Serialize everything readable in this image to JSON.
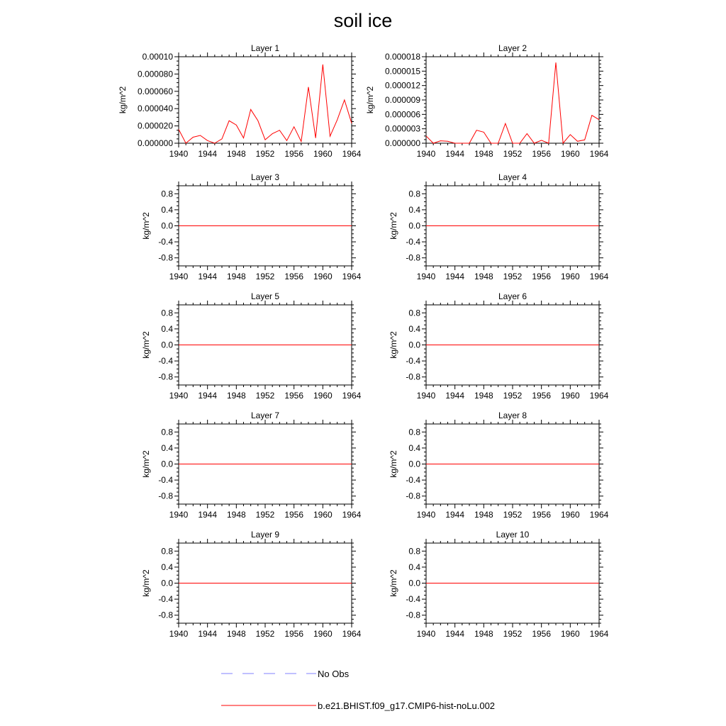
{
  "title": "soil ice",
  "colors": {
    "model": "#ff0000",
    "obs": "#8080ff",
    "axis": "#000000"
  },
  "legend": {
    "obs_label": "No Obs",
    "model_label": "b.e21.BHIST.f09_g17.CMIP6-hist-noLu.002"
  },
  "chart_data": [
    {
      "type": "line",
      "title": "Layer 1",
      "ylabel": "kg/m^2",
      "xlim": [
        1940,
        1964
      ],
      "ylim": [
        0,
        0.0001
      ],
      "xticks": [
        "1940",
        "1944",
        "1948",
        "1952",
        "1956",
        "1960",
        "1964"
      ],
      "yticks": [
        "0.000000",
        "0.000020",
        "0.000040",
        "0.000060",
        "0.000080",
        "0.00010"
      ],
      "x": [
        1940,
        1941,
        1942,
        1943,
        1944,
        1945,
        1946,
        1947,
        1948,
        1949,
        1950,
        1951,
        1952,
        1953,
        1954,
        1955,
        1956,
        1957,
        1958,
        1959,
        1960,
        1961,
        1962,
        1963,
        1964
      ],
      "series": [
        {
          "values": [
            1.6e-05,
            0.0,
            7e-06,
            9e-06,
            3e-06,
            0.0,
            5e-06,
            2.6e-05,
            2.1e-05,
            6e-06,
            3.9e-05,
            2.6e-05,
            4e-06,
            1.1e-05,
            1.5e-05,
            3e-06,
            1.9e-05,
            2e-06,
            6.5e-05,
            6e-06,
            9.1e-05,
            8e-06,
            2.7e-05,
            5e-05,
            2.3e-05
          ]
        }
      ]
    },
    {
      "type": "line",
      "title": "Layer 2",
      "ylabel": "kg/m^2",
      "xlim": [
        1940,
        1964
      ],
      "ylim": [
        0,
        1.8e-05
      ],
      "xticks": [
        "1940",
        "1944",
        "1948",
        "1952",
        "1956",
        "1960",
        "1964"
      ],
      "yticks": [
        "0.000000",
        "0.000003",
        "0.000006",
        "0.000009",
        "0.000012",
        "0.000015",
        "0.000018"
      ],
      "x": [
        1940,
        1941,
        1942,
        1943,
        1944,
        1945,
        1946,
        1947,
        1948,
        1949,
        1950,
        1951,
        1952,
        1953,
        1954,
        1955,
        1956,
        1957,
        1958,
        1959,
        1960,
        1961,
        1962,
        1963,
        1964
      ],
      "series": [
        {
          "values": [
            1.5e-06,
            0.0,
            5e-07,
            4e-07,
            0.0,
            0.0,
            0.0,
            2.7e-06,
            2.3e-06,
            0.0,
            0.0,
            4.1e-06,
            0.0,
            0.0,
            2e-06,
            0.0,
            6e-07,
            0.0,
            1.68e-05,
            0.0,
            1.8e-06,
            4e-07,
            7e-07,
            5.8e-06,
            4.9e-06
          ]
        }
      ]
    },
    {
      "type": "line",
      "title": "Layer 3",
      "ylabel": "kg/m^2",
      "xlim": [
        1940,
        1964
      ],
      "ylim": [
        -1,
        1
      ],
      "xticks": [
        "1940",
        "1944",
        "1948",
        "1952",
        "1956",
        "1960",
        "1964"
      ],
      "yticks": [
        "-0.8",
        "-0.4",
        "0.0",
        "0.4",
        "0.8"
      ],
      "x": [
        1940,
        1964
      ],
      "series": [
        {
          "values": [
            0,
            0
          ]
        }
      ]
    },
    {
      "type": "line",
      "title": "Layer 4",
      "ylabel": "kg/m^2",
      "xlim": [
        1940,
        1964
      ],
      "ylim": [
        -1,
        1
      ],
      "xticks": [
        "1940",
        "1944",
        "1948",
        "1952",
        "1956",
        "1960",
        "1964"
      ],
      "yticks": [
        "-0.8",
        "-0.4",
        "0.0",
        "0.4",
        "0.8"
      ],
      "x": [
        1940,
        1964
      ],
      "series": [
        {
          "values": [
            0,
            0
          ]
        }
      ]
    },
    {
      "type": "line",
      "title": "Layer 5",
      "ylabel": "kg/m^2",
      "xlim": [
        1940,
        1964
      ],
      "ylim": [
        -1,
        1
      ],
      "xticks": [
        "1940",
        "1944",
        "1948",
        "1952",
        "1956",
        "1960",
        "1964"
      ],
      "yticks": [
        "-0.8",
        "-0.4",
        "0.0",
        "0.4",
        "0.8"
      ],
      "x": [
        1940,
        1964
      ],
      "series": [
        {
          "values": [
            0,
            0
          ]
        }
      ]
    },
    {
      "type": "line",
      "title": "Layer 6",
      "ylabel": "kg/m^2",
      "xlim": [
        1940,
        1964
      ],
      "ylim": [
        -1,
        1
      ],
      "xticks": [
        "1940",
        "1944",
        "1948",
        "1952",
        "1956",
        "1960",
        "1964"
      ],
      "yticks": [
        "-0.8",
        "-0.4",
        "0.0",
        "0.4",
        "0.8"
      ],
      "x": [
        1940,
        1964
      ],
      "series": [
        {
          "values": [
            0,
            0
          ]
        }
      ]
    },
    {
      "type": "line",
      "title": "Layer 7",
      "ylabel": "kg/m^2",
      "xlim": [
        1940,
        1964
      ],
      "ylim": [
        -1,
        1
      ],
      "xticks": [
        "1940",
        "1944",
        "1948",
        "1952",
        "1956",
        "1960",
        "1964"
      ],
      "yticks": [
        "-0.8",
        "-0.4",
        "0.0",
        "0.4",
        "0.8"
      ],
      "x": [
        1940,
        1964
      ],
      "series": [
        {
          "values": [
            0,
            0
          ]
        }
      ]
    },
    {
      "type": "line",
      "title": "Layer 8",
      "ylabel": "kg/m^2",
      "xlim": [
        1940,
        1964
      ],
      "ylim": [
        -1,
        1
      ],
      "xticks": [
        "1940",
        "1944",
        "1948",
        "1952",
        "1956",
        "1960",
        "1964"
      ],
      "yticks": [
        "-0.8",
        "-0.4",
        "0.0",
        "0.4",
        "0.8"
      ],
      "x": [
        1940,
        1964
      ],
      "series": [
        {
          "values": [
            0,
            0
          ]
        }
      ]
    },
    {
      "type": "line",
      "title": "Layer 9",
      "ylabel": "kg/m^2",
      "xlim": [
        1940,
        1964
      ],
      "ylim": [
        -1,
        1
      ],
      "xticks": [
        "1940",
        "1944",
        "1948",
        "1952",
        "1956",
        "1960",
        "1964"
      ],
      "yticks": [
        "-0.8",
        "-0.4",
        "0.0",
        "0.4",
        "0.8"
      ],
      "x": [
        1940,
        1964
      ],
      "series": [
        {
          "values": [
            0,
            0
          ]
        }
      ]
    },
    {
      "type": "line",
      "title": "Layer 10",
      "ylabel": "kg/m^2",
      "xlim": [
        1940,
        1964
      ],
      "ylim": [
        -1,
        1
      ],
      "xticks": [
        "1940",
        "1944",
        "1948",
        "1952",
        "1956",
        "1960",
        "1964"
      ],
      "yticks": [
        "-0.8",
        "-0.4",
        "0.0",
        "0.4",
        "0.8"
      ],
      "x": [
        1940,
        1964
      ],
      "series": [
        {
          "values": [
            0,
            0
          ]
        }
      ]
    }
  ]
}
